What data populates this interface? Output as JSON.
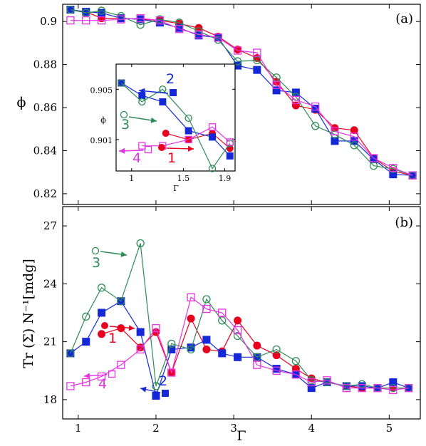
{
  "colors": {
    "s1": "#e8001e",
    "s2": "#1428d8",
    "s3": "#2e8b57",
    "s4": "#e633e6"
  },
  "chart_data": [
    {
      "panel": "(a)",
      "type": "line",
      "xlabel": "",
      "ylabel": "ϕ",
      "xlim": [
        0.8,
        5.4
      ],
      "ylim": [
        0.815,
        0.908
      ],
      "xticks": [
        1,
        2,
        3,
        4,
        5
      ],
      "yticks": [
        0.82,
        0.84,
        0.86,
        0.88,
        0.9
      ],
      "ytick_labels": [
        "0.82",
        "0.84",
        "0.86",
        "0.88",
        "0.9"
      ],
      "series": [
        {
          "key": "s1",
          "marker": "filled-circle",
          "x": [
            0.9,
            1.1,
            1.3,
            1.55,
            1.8,
            2.05,
            2.3,
            2.55,
            2.8,
            3.05,
            3.3,
            3.55,
            3.8,
            4.05,
            4.3,
            4.55,
            4.8,
            5.05,
            5.3
          ],
          "y": [
            0.9055,
            0.9045,
            0.9015,
            0.9015,
            0.901,
            0.9005,
            0.899,
            0.897,
            0.893,
            0.887,
            0.883,
            0.872,
            0.861,
            0.859,
            0.8505,
            0.8495,
            0.8365,
            0.8305,
            0.8285
          ]
        },
        {
          "key": "s2",
          "marker": "filled-square",
          "x": [
            0.9,
            1.1,
            1.3,
            1.55,
            1.8,
            2.05,
            2.3,
            2.55,
            2.8,
            3.05,
            3.3,
            3.55,
            3.8,
            4.05,
            4.3,
            4.55,
            4.8,
            5.05,
            5.3
          ],
          "y": [
            0.9055,
            0.9045,
            0.904,
            0.9015,
            0.901,
            0.8995,
            0.897,
            0.8935,
            0.8925,
            0.8795,
            0.8775,
            0.868,
            0.867,
            0.8595,
            0.8445,
            0.8445,
            0.836,
            0.829,
            0.8285
          ]
        },
        {
          "key": "s3",
          "marker": "open-circle",
          "x": [
            0.9,
            1.1,
            1.3,
            1.55,
            1.8,
            2.05,
            2.3,
            2.55,
            2.8,
            3.05,
            3.3,
            3.55,
            3.8,
            4.05,
            4.3,
            4.55,
            4.8,
            5.05,
            5.3
          ],
          "y": [
            0.9055,
            0.904,
            0.905,
            0.9025,
            0.8985,
            0.901,
            0.8995,
            0.8955,
            0.8915,
            0.8815,
            0.882,
            0.874,
            0.865,
            0.8515,
            0.8475,
            0.8425,
            0.833,
            0.8315,
            0.8285
          ]
        },
        {
          "key": "s4",
          "marker": "open-square",
          "x": [
            0.9,
            1.1,
            1.3,
            1.55,
            1.8,
            2.05,
            2.3,
            2.55,
            2.8,
            3.05,
            3.3,
            3.55,
            3.8,
            4.05,
            4.3,
            4.55,
            4.8,
            5.05,
            5.3
          ],
          "y": [
            0.9005,
            0.9005,
            0.9005,
            0.901,
            0.9015,
            0.9005,
            0.8965,
            0.894,
            0.8925,
            0.8865,
            0.8855,
            0.8705,
            0.8635,
            0.8605,
            0.849,
            0.8465,
            0.8365,
            0.832,
            0.8285
          ]
        }
      ]
    },
    {
      "panel": "inset",
      "type": "line",
      "xlabel": "Γ",
      "ylabel": "ϕ",
      "xlim": [
        0.85,
        2.0
      ],
      "ylim": [
        0.8985,
        0.907
      ],
      "xticks": [
        1,
        1.5,
        1.9
      ],
      "xtick_labels": [
        "1",
        "1.5",
        "1.9"
      ],
      "yticks": [
        0.901,
        0.905
      ],
      "ytick_labels": [
        "0.901",
        "0.905"
      ],
      "annotations": [
        "1",
        "2",
        "3",
        "4"
      ],
      "series": [
        {
          "key": "s1",
          "marker": "filled-circle",
          "x": [
            1.33,
            1.55,
            1.78,
            1.95
          ],
          "y": [
            0.9015,
            0.901,
            0.9015,
            0.9003
          ]
        },
        {
          "key": "s2",
          "marker": "filled-square",
          "x": [
            0.9,
            1.1,
            1.3,
            1.55,
            1.78,
            1.95
          ],
          "y": [
            0.9055,
            0.9045,
            0.904,
            0.9017,
            0.9012,
            0.8997
          ]
        },
        {
          "key": "s3",
          "marker": "open-circle",
          "x": [
            0.9,
            1.1,
            1.3,
            1.55,
            1.78,
            1.95
          ],
          "y": [
            0.9055,
            0.904,
            0.905,
            0.9027,
            0.8987,
            0.9007
          ]
        },
        {
          "key": "s4",
          "marker": "open-square",
          "x": [
            1.1,
            1.3,
            1.55,
            1.78,
            1.95
          ],
          "y": [
            0.9005,
            0.9005,
            0.901,
            0.902,
            0.9008
          ]
        }
      ]
    },
    {
      "panel": "(b)",
      "type": "line",
      "xlabel": "Γ",
      "ylabel": "Tr (Σ) N⁻¹[mdg]",
      "xlim": [
        0.8,
        5.4
      ],
      "ylim": [
        17.0,
        28.0
      ],
      "xticks": [
        1,
        2,
        3,
        4,
        5
      ],
      "yticks": [
        18,
        21,
        24,
        27
      ],
      "annotations": [
        "1",
        "2",
        "3",
        "4"
      ],
      "series": [
        {
          "key": "s1",
          "marker": "filled-circle",
          "x": [
            1.3,
            1.55,
            1.8,
            2.0,
            2.2,
            2.45,
            2.65,
            2.85,
            3.05,
            3.3,
            3.55,
            3.8,
            4.0,
            4.2,
            4.45,
            4.65,
            4.85,
            5.05,
            5.25
          ],
          "y": [
            21.4,
            21.7,
            20.7,
            21.5,
            19.4,
            22.2,
            20.6,
            20.5,
            22.1,
            20.8,
            20.3,
            19.6,
            19.1,
            18.9,
            18.7,
            18.6,
            18.6,
            18.6,
            18.6
          ]
        },
        {
          "key": "s2",
          "marker": "filled-square",
          "x": [
            0.9,
            1.1,
            1.3,
            1.55,
            1.8,
            2.0,
            2.2,
            2.45,
            2.65,
            2.85,
            3.05,
            3.3,
            3.55,
            3.8,
            4.0,
            4.2,
            4.45,
            4.65,
            4.85,
            5.05,
            5.25
          ],
          "y": [
            20.4,
            21.0,
            22.5,
            23.1,
            21.5,
            18.2,
            20.6,
            20.7,
            21.1,
            20.4,
            20.2,
            20.2,
            19.6,
            19.3,
            18.6,
            18.9,
            18.7,
            18.7,
            18.6,
            18.9,
            18.6
          ]
        },
        {
          "key": "s3",
          "marker": "open-circle",
          "x": [
            0.9,
            1.1,
            1.3,
            1.55,
            1.8,
            2.0,
            2.2,
            2.45,
            2.65,
            2.85,
            3.05,
            3.3,
            3.55,
            3.8,
            4.0,
            4.2,
            4.45,
            4.65,
            4.85,
            5.05,
            5.25
          ],
          "y": [
            20.4,
            22.3,
            23.8,
            23.1,
            26.1,
            18.7,
            20.9,
            20.6,
            23.2,
            22.1,
            21.3,
            20.2,
            20.6,
            20.0,
            19.0,
            18.9,
            18.7,
            18.8,
            18.6,
            18.6,
            18.6
          ]
        },
        {
          "key": "s4",
          "marker": "open-square",
          "x": [
            0.9,
            1.1,
            1.3,
            1.55,
            1.8,
            2.0,
            2.2,
            2.45,
            2.65,
            2.85,
            3.05,
            3.3,
            3.55,
            3.8,
            4.0,
            4.2,
            4.45,
            4.65,
            4.85,
            5.05,
            5.25
          ],
          "y": [
            18.7,
            18.9,
            19.2,
            19.8,
            20.6,
            21.7,
            19.4,
            23.3,
            22.7,
            22.5,
            21.6,
            19.8,
            19.5,
            19.3,
            18.9,
            19.0,
            18.6,
            18.6,
            18.6,
            18.5,
            18.6
          ]
        }
      ]
    }
  ]
}
